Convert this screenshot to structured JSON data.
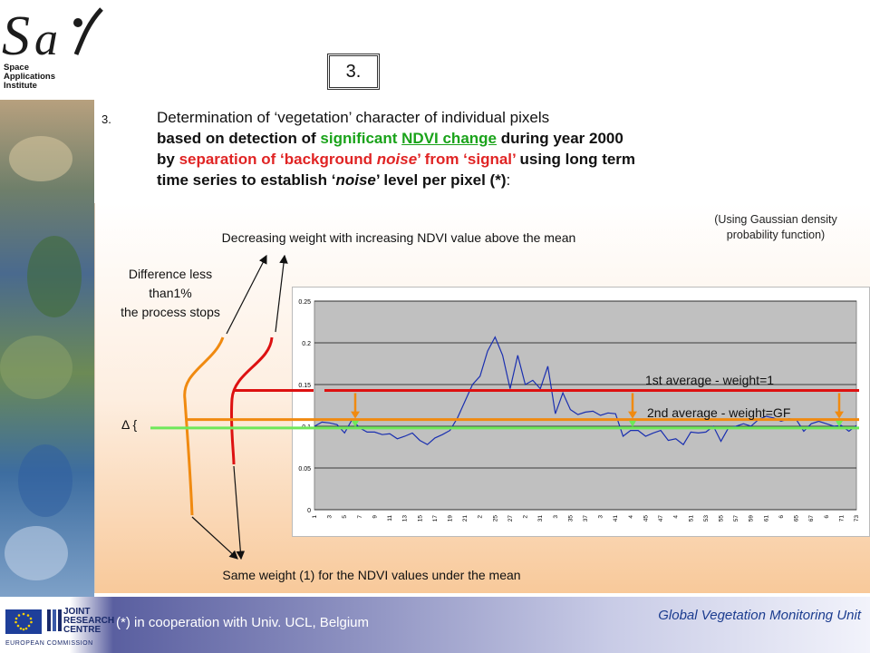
{
  "logo": {
    "line1": "Space",
    "line2": "Applications",
    "line3": "Institute"
  },
  "slide_number": "3.",
  "heading": {
    "number": "3.",
    "line1": "Determination of ‘vegetation’ character of individual pixels",
    "line2_a": "based on detection of ",
    "line2_b": "significant ",
    "line2_c": "NDVI change",
    "line2_d": " during year 2000",
    "line3_a": "by ",
    "line3_b": "separation of ‘background ",
    "line3_c": "noise",
    "line3_d": "’ from ‘signal’",
    "line3_e": " using long term",
    "line4_a": "time series to establish ‘",
    "line4_b": "noise",
    "line4_c": "’ level per pixel (*)",
    "line4_d": ":"
  },
  "panel": {
    "gaussian_note_1": "(Using Gaussian density",
    "gaussian_note_2": "probability function)",
    "decreasing_weight": "Decreasing weight with increasing NDVI value above the mean",
    "diff_1": "Difference less",
    "diff_2": "than1%",
    "diff_3": "the process stops",
    "delta": "Δ {",
    "first_avg": "1st average - weight=1",
    "second_avg": "2nd average - weight=GF",
    "same_weight": "Same weight (1) for the NDVI values under the mean"
  },
  "chart_data": {
    "type": "line",
    "ylim": [
      0,
      0.25
    ],
    "yticks": [
      "0",
      "0.05",
      "0.1",
      "0.15",
      "0.2",
      "0.25"
    ],
    "xlim": [
      1,
      73
    ],
    "xticks": [
      "1",
      "3",
      "5",
      "7",
      "9",
      "11",
      "13",
      "15",
      "17",
      "19",
      "21",
      "2",
      "25",
      "27",
      "2",
      "31",
      "3",
      "35",
      "37",
      "3",
      "41",
      "4",
      "45",
      "47",
      "4",
      "51",
      "53",
      "55",
      "57",
      "59",
      "61",
      "6",
      "65",
      "67",
      "6",
      "71",
      "73"
    ],
    "series": [
      {
        "values": [
          0.1,
          0.105,
          0.104,
          0.102,
          0.092,
          0.108,
          0.098,
          0.093,
          0.093,
          0.09,
          0.091,
          0.085,
          0.088,
          0.092,
          0.083,
          0.078,
          0.086,
          0.09,
          0.095,
          0.11,
          0.13,
          0.15,
          0.16,
          0.19,
          0.207,
          0.185,
          0.145,
          0.185,
          0.15,
          0.155,
          0.145,
          0.172,
          0.115,
          0.14,
          0.12,
          0.114,
          0.117,
          0.118,
          0.113,
          0.116,
          0.115,
          0.088,
          0.095,
          0.095,
          0.088,
          0.092,
          0.095,
          0.083,
          0.085,
          0.078,
          0.093,
          0.092,
          0.093,
          0.1,
          0.082,
          0.098,
          0.1,
          0.103,
          0.1,
          0.108,
          0.112,
          0.11,
          0.106,
          0.109,
          0.108,
          0.094,
          0.103,
          0.106,
          0.103,
          0.1,
          0.101,
          0.094,
          0.101
        ]
      }
    ],
    "reference_lines": [
      {
        "label": "1st average - weight=1",
        "value": 0.143,
        "color": "#dd1111"
      },
      {
        "label": "2nd average - weight=GF",
        "value": 0.108,
        "color": "#f08a10"
      },
      {
        "label": "",
        "value": 0.098,
        "color": "#6ee85a"
      }
    ],
    "grid": true
  },
  "footer": {
    "jrc_1": "JOINT",
    "jrc_2": "RESEARCH",
    "jrc_3": "CENTRE",
    "ec": "EUROPEAN COMMISSION",
    "note": "(*) in cooperation with Univ. UCL, Belgium",
    "unit": "Global Vegetation Monitoring Unit"
  },
  "colors": {
    "red": "#dd1111",
    "orange": "#f08a10",
    "green": "#6ee85a",
    "chart_bg": "#c0c0c0",
    "series": "#1a2fb0"
  }
}
